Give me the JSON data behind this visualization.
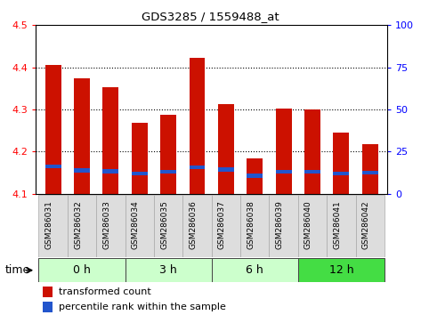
{
  "title": "GDS3285 / 1559488_at",
  "samples": [
    "GSM286031",
    "GSM286032",
    "GSM286033",
    "GSM286034",
    "GSM286035",
    "GSM286036",
    "GSM286037",
    "GSM286038",
    "GSM286039",
    "GSM286040",
    "GSM286041",
    "GSM286042"
  ],
  "bar_values": [
    4.405,
    4.375,
    4.352,
    4.268,
    4.287,
    4.422,
    4.312,
    4.183,
    4.302,
    4.3,
    4.245,
    4.218
  ],
  "blue_values": [
    4.165,
    4.155,
    4.153,
    4.148,
    4.152,
    4.163,
    4.157,
    4.143,
    4.152,
    4.152,
    4.148,
    4.15
  ],
  "ymin": 4.1,
  "ymax": 4.5,
  "y2min": 0,
  "y2max": 100,
  "yticks": [
    4.1,
    4.2,
    4.3,
    4.4,
    4.5
  ],
  "y2ticks": [
    0,
    25,
    50,
    75,
    100
  ],
  "bar_color": "#cc1100",
  "blue_color": "#2255cc",
  "groups": [
    {
      "label": "0 h",
      "start": 0,
      "end": 3,
      "color": "#ccffcc"
    },
    {
      "label": "3 h",
      "start": 3,
      "end": 6,
      "color": "#ccffcc"
    },
    {
      "label": "6 h",
      "start": 6,
      "end": 9,
      "color": "#ccffcc"
    },
    {
      "label": "12 h",
      "start": 9,
      "end": 12,
      "color": "#44dd44"
    }
  ],
  "bar_width": 0.55,
  "time_label": "time",
  "legend_items": [
    "transformed count",
    "percentile rank within the sample"
  ],
  "legend_colors": [
    "#cc1100",
    "#2255cc"
  ]
}
